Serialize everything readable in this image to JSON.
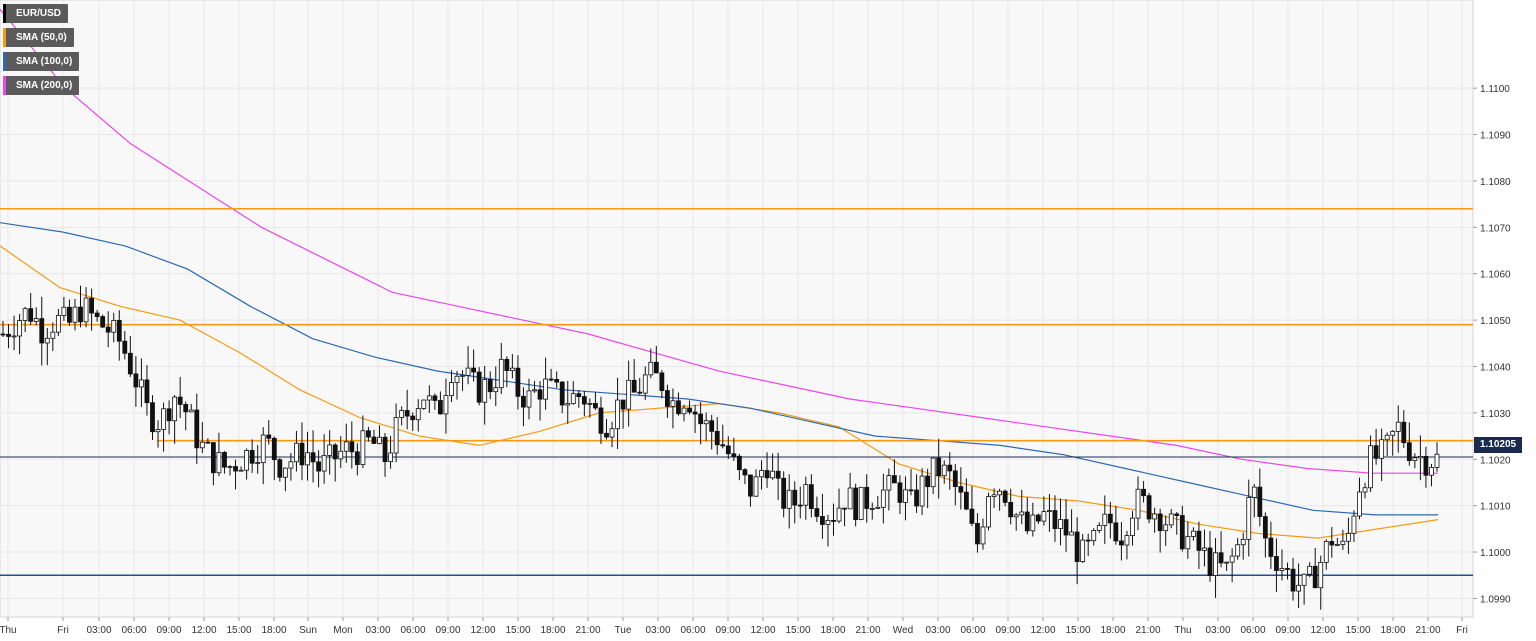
{
  "legend": [
    {
      "label": "EUR/USD",
      "color": "#000000"
    },
    {
      "label": "SMA (50,0)",
      "color": "#f39c12"
    },
    {
      "label": "SMA (100,0)",
      "color": "#2d6ab3"
    },
    {
      "label": "SMA (200,0)",
      "color": "#ee44ee"
    }
  ],
  "current_price": "1.10205",
  "chart_data": {
    "type": "candlestick",
    "symbol": "EUR/USD",
    "ylim": [
      1.0986,
      1.1119
    ],
    "y_ticks": [
      "1.0990",
      "1.1000",
      "1.1010",
      "1.1020",
      "1.1030",
      "1.1040",
      "1.1050",
      "1.1060",
      "1.1070",
      "1.1080",
      "1.1090",
      "1.1100"
    ],
    "x_ticks": [
      "Thu",
      "Fri",
      "03:00",
      "06:00",
      "09:00",
      "12:00",
      "15:00",
      "18:00",
      "Sun",
      "Mon",
      "03:00",
      "06:00",
      "09:00",
      "12:00",
      "15:00",
      "18:00",
      "21:00",
      "Tue",
      "03:00",
      "06:00",
      "09:00",
      "12:00",
      "15:00",
      "18:00",
      "21:00",
      "Wed",
      "03:00",
      "06:00",
      "09:00",
      "12:00",
      "15:00",
      "18:00",
      "21:00",
      "Thu",
      "03:00",
      "06:00",
      "09:00",
      "12:00",
      "15:00",
      "18:00",
      "21:00",
      "Fri"
    ],
    "price_path": [
      1.1047,
      1.105,
      1.1052,
      1.1048,
      1.105,
      1.1049,
      1.1053,
      1.105,
      1.1048,
      1.1045,
      1.1038,
      1.103,
      1.1028,
      1.1034,
      1.103,
      1.1023,
      1.102,
      1.1018,
      1.102,
      1.1022,
      1.1024,
      1.1019,
      1.102,
      1.1022,
      1.1018,
      1.102,
      1.1022,
      1.1022,
      1.1024,
      1.102,
      1.1027,
      1.1031,
      1.1034,
      1.1029,
      1.104,
      1.1038,
      1.1035,
      1.1036,
      1.104,
      1.1035,
      1.1033,
      1.1036,
      1.1034,
      1.1033,
      1.1034,
      1.103,
      1.1028,
      1.1033,
      1.1034,
      1.1038,
      1.1037,
      1.1032,
      1.1034,
      1.1028,
      1.1026,
      1.1022,
      1.1016,
      1.1013,
      1.102,
      1.1012,
      1.101,
      1.1014,
      1.101,
      1.1008,
      1.1012,
      1.101,
      1.1012,
      1.1013,
      1.1014,
      1.101,
      1.1015,
      1.1018,
      1.1016,
      1.101,
      1.1001,
      1.1015,
      1.1014,
      1.1008,
      1.1004,
      1.1008,
      1.1006,
      1.1004,
      1.0999,
      1.1002,
      1.1007,
      1.1004,
      1.1011,
      1.101,
      1.1008,
      1.1005,
      1.1003,
      1.1,
      1.0997,
      1.0996,
      1.1002,
      1.1014,
      1.1002,
      1.0998,
      1.0994,
      1.0992,
      1.0997,
      1.1003,
      1.1,
      1.1014,
      1.102,
      1.1021,
      1.1027,
      1.1022,
      1.102,
      1.102
    ],
    "series": [
      {
        "name": "SMA (50,0)",
        "color": "#f39c12",
        "values": [
          1.1066,
          1.1057,
          1.1053,
          1.105,
          1.1043,
          1.1035,
          1.1029,
          1.1025,
          1.1023,
          1.1026,
          1.103,
          1.1031,
          1.1032,
          1.103,
          1.1027,
          1.1019,
          1.1015,
          1.1012,
          1.1011,
          1.1009,
          1.1006,
          1.1004,
          1.1003,
          1.1005,
          1.1007
        ]
      },
      {
        "name": "SMA (100,0)",
        "color": "#2d6ab3",
        "values": [
          1.1071,
          1.1069,
          1.1066,
          1.1061,
          1.1053,
          1.1046,
          1.1042,
          1.1039,
          1.1037,
          1.1035,
          1.1034,
          1.1033,
          1.1031,
          1.1028,
          1.1025,
          1.1024,
          1.1023,
          1.1021,
          1.1018,
          1.1015,
          1.1012,
          1.1009,
          1.1008,
          1.1008
        ]
      },
      {
        "name": "SMA (200,0)",
        "color": "#ee44ee",
        "values": [
          1.1117,
          1.11,
          1.1088,
          1.1079,
          1.107,
          1.1063,
          1.1056,
          1.1053,
          1.105,
          1.1047,
          1.1043,
          1.1039,
          1.1036,
          1.1033,
          1.1031,
          1.1029,
          1.1027,
          1.1025,
          1.1023,
          1.102,
          1.1018,
          1.1017,
          1.1017
        ]
      }
    ],
    "horizontal_lines": [
      {
        "name": "resistance",
        "value": 1.1074,
        "color": "#f39c12"
      },
      {
        "name": "resistance",
        "value": 1.1049,
        "color": "#f39c12"
      },
      {
        "name": "resistance",
        "value": 1.1024,
        "color": "#f39c12"
      },
      {
        "name": "current-price",
        "value": 1.10205,
        "color": "#1b2a4e"
      },
      {
        "name": "support",
        "value": 1.0995,
        "color": "#1b4e9e"
      }
    ],
    "grid": true,
    "legend_position": "top-left"
  }
}
